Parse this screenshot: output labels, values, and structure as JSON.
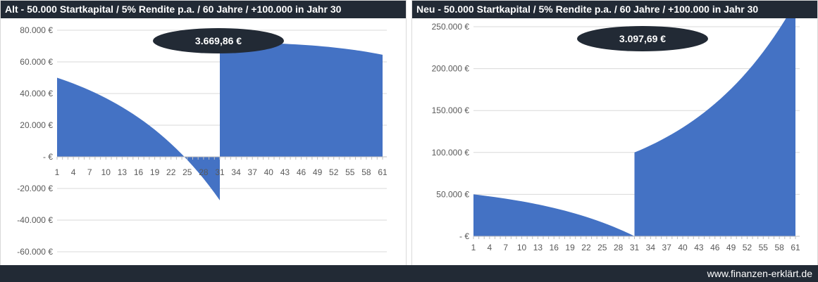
{
  "footer": {
    "website": "www.finanzen-erklärt.de"
  },
  "chart_data": [
    {
      "type": "area",
      "title": "Alt - 50.000 Startkapital / 5% Rendite p.a. / 60 Jahre / +100.000 in Jahr 30",
      "callout": "3.669,86 €",
      "ylim": [
        -60000,
        80000
      ],
      "yticks": [
        -60000,
        -40000,
        -20000,
        0,
        20000,
        40000,
        60000,
        80000
      ],
      "ytick_labels": [
        "-60.000 €",
        "-40.000 €",
        "-20.000 €",
        "- €",
        "20.000 €",
        "40.000 €",
        "60.000 €",
        "80.000 €"
      ],
      "x_range": [
        1,
        61
      ],
      "xtick_labels": [
        "1",
        "4",
        "7",
        "10",
        "13",
        "16",
        "19",
        "22",
        "25",
        "28",
        "31",
        "34",
        "37",
        "40",
        "43",
        "46",
        "49",
        "52",
        "55",
        "58",
        "61"
      ],
      "grid": true,
      "color": "#4472c4",
      "series": [
        {
          "x": [
            1,
            2,
            3,
            4,
            5,
            6,
            7,
            8,
            9,
            10,
            11,
            12,
            13,
            14,
            15,
            16,
            17,
            18,
            19,
            20,
            21,
            22,
            23,
            24,
            25,
            26,
            27,
            28,
            29,
            30,
            31,
            31,
            32,
            33,
            34,
            35,
            36,
            37,
            38,
            39,
            40,
            41,
            42,
            43,
            44,
            45,
            46,
            47,
            48,
            49,
            50,
            51,
            52,
            53,
            54,
            55,
            56,
            57,
            58,
            59,
            60,
            61
          ],
          "values": [
            50000,
            48830,
            47600,
            46310,
            44960,
            43540,
            42050,
            40480,
            38840,
            37110,
            35300,
            33400,
            31400,
            29300,
            27100,
            24800,
            22380,
            19830,
            17160,
            14350,
            11400,
            8300,
            5050,
            1640,
            -1940,
            -5700,
            -9650,
            -13800,
            -18150,
            -22720,
            -27520,
            72480,
            72440,
            72400,
            72360,
            72300,
            72230,
            72150,
            72060,
            71960,
            71850,
            71720,
            71580,
            71420,
            71250,
            71060,
            70850,
            70620,
            70370,
            70100,
            69800,
            69480,
            69130,
            68750,
            68340,
            67900,
            67430,
            66920,
            66380,
            65800,
            65170,
            64500
          ]
        }
      ]
    },
    {
      "type": "area",
      "title": "Neu - 50.000 Startkapital / 5% Rendite p.a. / 60 Jahre /  +100.000 in Jahr 30",
      "callout": "3.097,69 €",
      "ylim": [
        0,
        250000
      ],
      "yticks": [
        0,
        50000,
        100000,
        150000,
        200000,
        250000
      ],
      "ytick_labels": [
        "- €",
        "50.000 €",
        "100.000 €",
        "150.000 €",
        "200.000 €",
        "250.000 €"
      ],
      "x_range": [
        1,
        61
      ],
      "xtick_labels": [
        "1",
        "4",
        "7",
        "10",
        "13",
        "16",
        "19",
        "22",
        "25",
        "28",
        "31",
        "34",
        "37",
        "40",
        "43",
        "46",
        "49",
        "52",
        "55",
        "58",
        "61"
      ],
      "grid": true,
      "color": "#4472c4",
      "series": [
        {
          "x": [
            1,
            2,
            3,
            4,
            5,
            6,
            7,
            8,
            9,
            10,
            11,
            12,
            13,
            14,
            15,
            16,
            17,
            18,
            19,
            20,
            21,
            22,
            23,
            24,
            25,
            26,
            27,
            28,
            29,
            30,
            31,
            31,
            32,
            33,
            34,
            35,
            36,
            37,
            38,
            39,
            40,
            41,
            42,
            43,
            44,
            45,
            46,
            47,
            48,
            49,
            50,
            51,
            52,
            53,
            54,
            55,
            56,
            57,
            58,
            59,
            60,
            61,
            61
          ],
          "values": [
            50000,
            49250,
            48460,
            47630,
            46760,
            45850,
            44890,
            43880,
            42820,
            41710,
            40540,
            39320,
            38030,
            36680,
            35270,
            33780,
            32210,
            30570,
            28850,
            27040,
            25140,
            23150,
            21060,
            18870,
            16570,
            14150,
            11610,
            8950,
            6150,
            3210,
            120,
            100000,
            102690,
            105520,
            108500,
            111620,
            114900,
            118350,
            121960,
            125760,
            129750,
            133940,
            138340,
            142950,
            147800,
            152890,
            158230,
            163840,
            169730,
            175910,
            182400,
            189220,
            196380,
            203900,
            211790,
            220080,
            228780,
            237920,
            247520,
            257600,
            268180,
            279280,
            0
          ]
        }
      ]
    }
  ]
}
